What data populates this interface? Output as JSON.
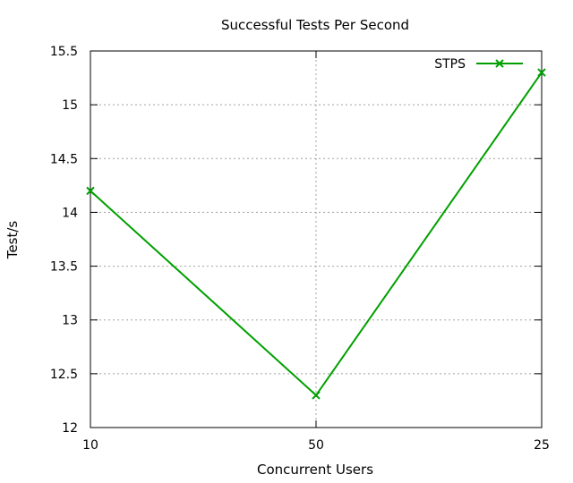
{
  "chart_data": {
    "type": "line",
    "title": "Successful Tests Per Second",
    "xlabel": "Concurrent Users",
    "ylabel": "Test/s",
    "categories": [
      "10",
      "50",
      "25"
    ],
    "series": [
      {
        "name": "STPS",
        "values": [
          14.2,
          12.3,
          15.3
        ],
        "color": "#00a000",
        "marker": "x"
      }
    ],
    "ylim": [
      12,
      15.5
    ],
    "yticks": [
      "12",
      "12.5",
      "13",
      "13.5",
      "14",
      "14.5",
      "15",
      "15.5"
    ],
    "grid": true,
    "legend": "top-right"
  }
}
